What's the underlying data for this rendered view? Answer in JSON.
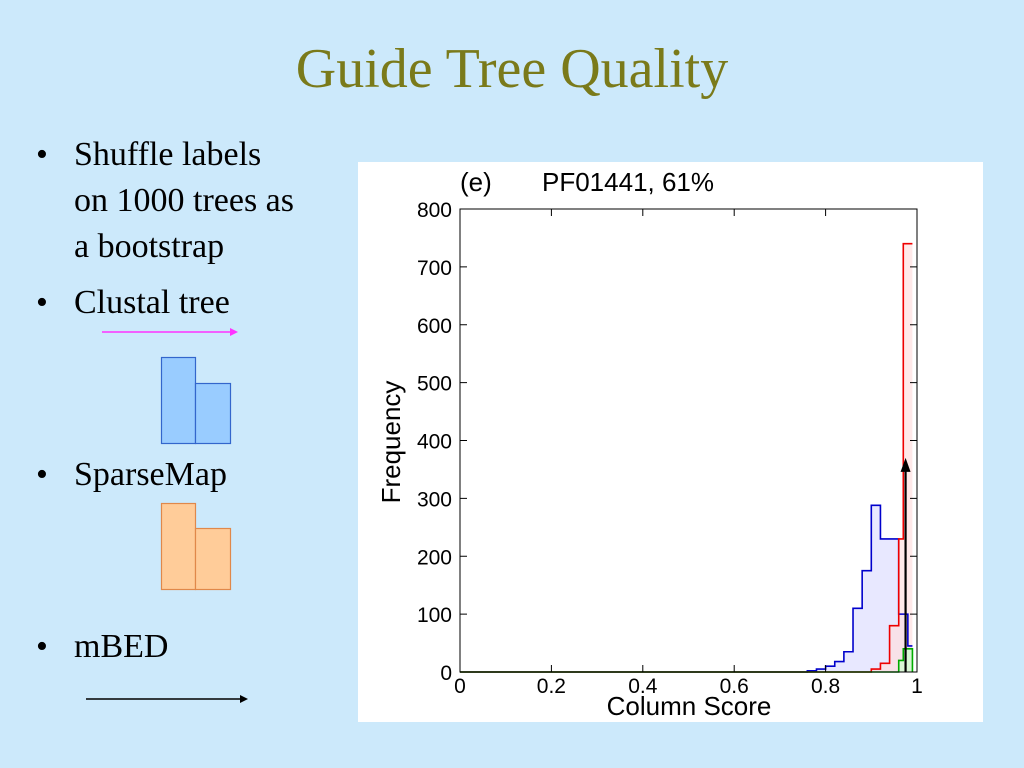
{
  "slide": {
    "title": "Guide Tree Quality",
    "bullets": [
      {
        "dot": "•",
        "lines": [
          "Shuffle labels",
          "on 1000 trees as",
          "a bootstrap"
        ]
      },
      {
        "dot": "•",
        "lines": [
          "Clustal tree"
        ]
      },
      {
        "dot": "•",
        "lines": [
          "SparseMap"
        ]
      },
      {
        "dot": "•",
        "lines": [
          "mBED"
        ]
      }
    ],
    "colors": {
      "title": "#7a7a1a",
      "background": "#cce9fb",
      "clustal_arrow": "#ff33ff",
      "mbed_arrow": "#000000",
      "clustal_icon": "#99ccff",
      "sparsemap_icon": "#ffcc99"
    },
    "icons": [
      "arrow-right-icon",
      "bar-chart-icon"
    ]
  },
  "chart_data": {
    "type": "line",
    "panel_label": "(e)",
    "title": "PF01441, 61%",
    "xlabel": "Column Score",
    "ylabel": "Frequency",
    "xlim": [
      0,
      1
    ],
    "ylim": [
      0,
      800
    ],
    "xticks": [
      "0",
      "0.2",
      "0.4",
      "0.6",
      "0.8",
      "1"
    ],
    "yticks": [
      "0",
      "100",
      "200",
      "300",
      "400",
      "500",
      "600",
      "700",
      "800"
    ],
    "grid": false,
    "series": [
      {
        "color": "#0000cc",
        "fill": "#dedeff",
        "x": [
          0,
          0.74,
          0.76,
          0.78,
          0.8,
          0.82,
          0.84,
          0.86,
          0.88,
          0.9,
          0.92,
          0.94,
          0.96,
          0.98,
          0.99
        ],
        "y": [
          0,
          0,
          2,
          5,
          10,
          18,
          35,
          110,
          175,
          288,
          230,
          230,
          100,
          45,
          45
        ]
      },
      {
        "color": "#ee0000",
        "fill": "#ffe0e0",
        "x": [
          0,
          0.88,
          0.9,
          0.92,
          0.94,
          0.96,
          0.97,
          0.99
        ],
        "y": [
          0,
          0,
          5,
          15,
          80,
          230,
          740,
          740
        ]
      },
      {
        "color": "#00aa00",
        "fill": "#ccffcc",
        "x": [
          0,
          0.94,
          0.96,
          0.97,
          0.99
        ],
        "y": [
          0,
          0,
          20,
          40,
          0
        ]
      }
    ],
    "marker": {
      "x": 0.975,
      "y": 370
    }
  }
}
